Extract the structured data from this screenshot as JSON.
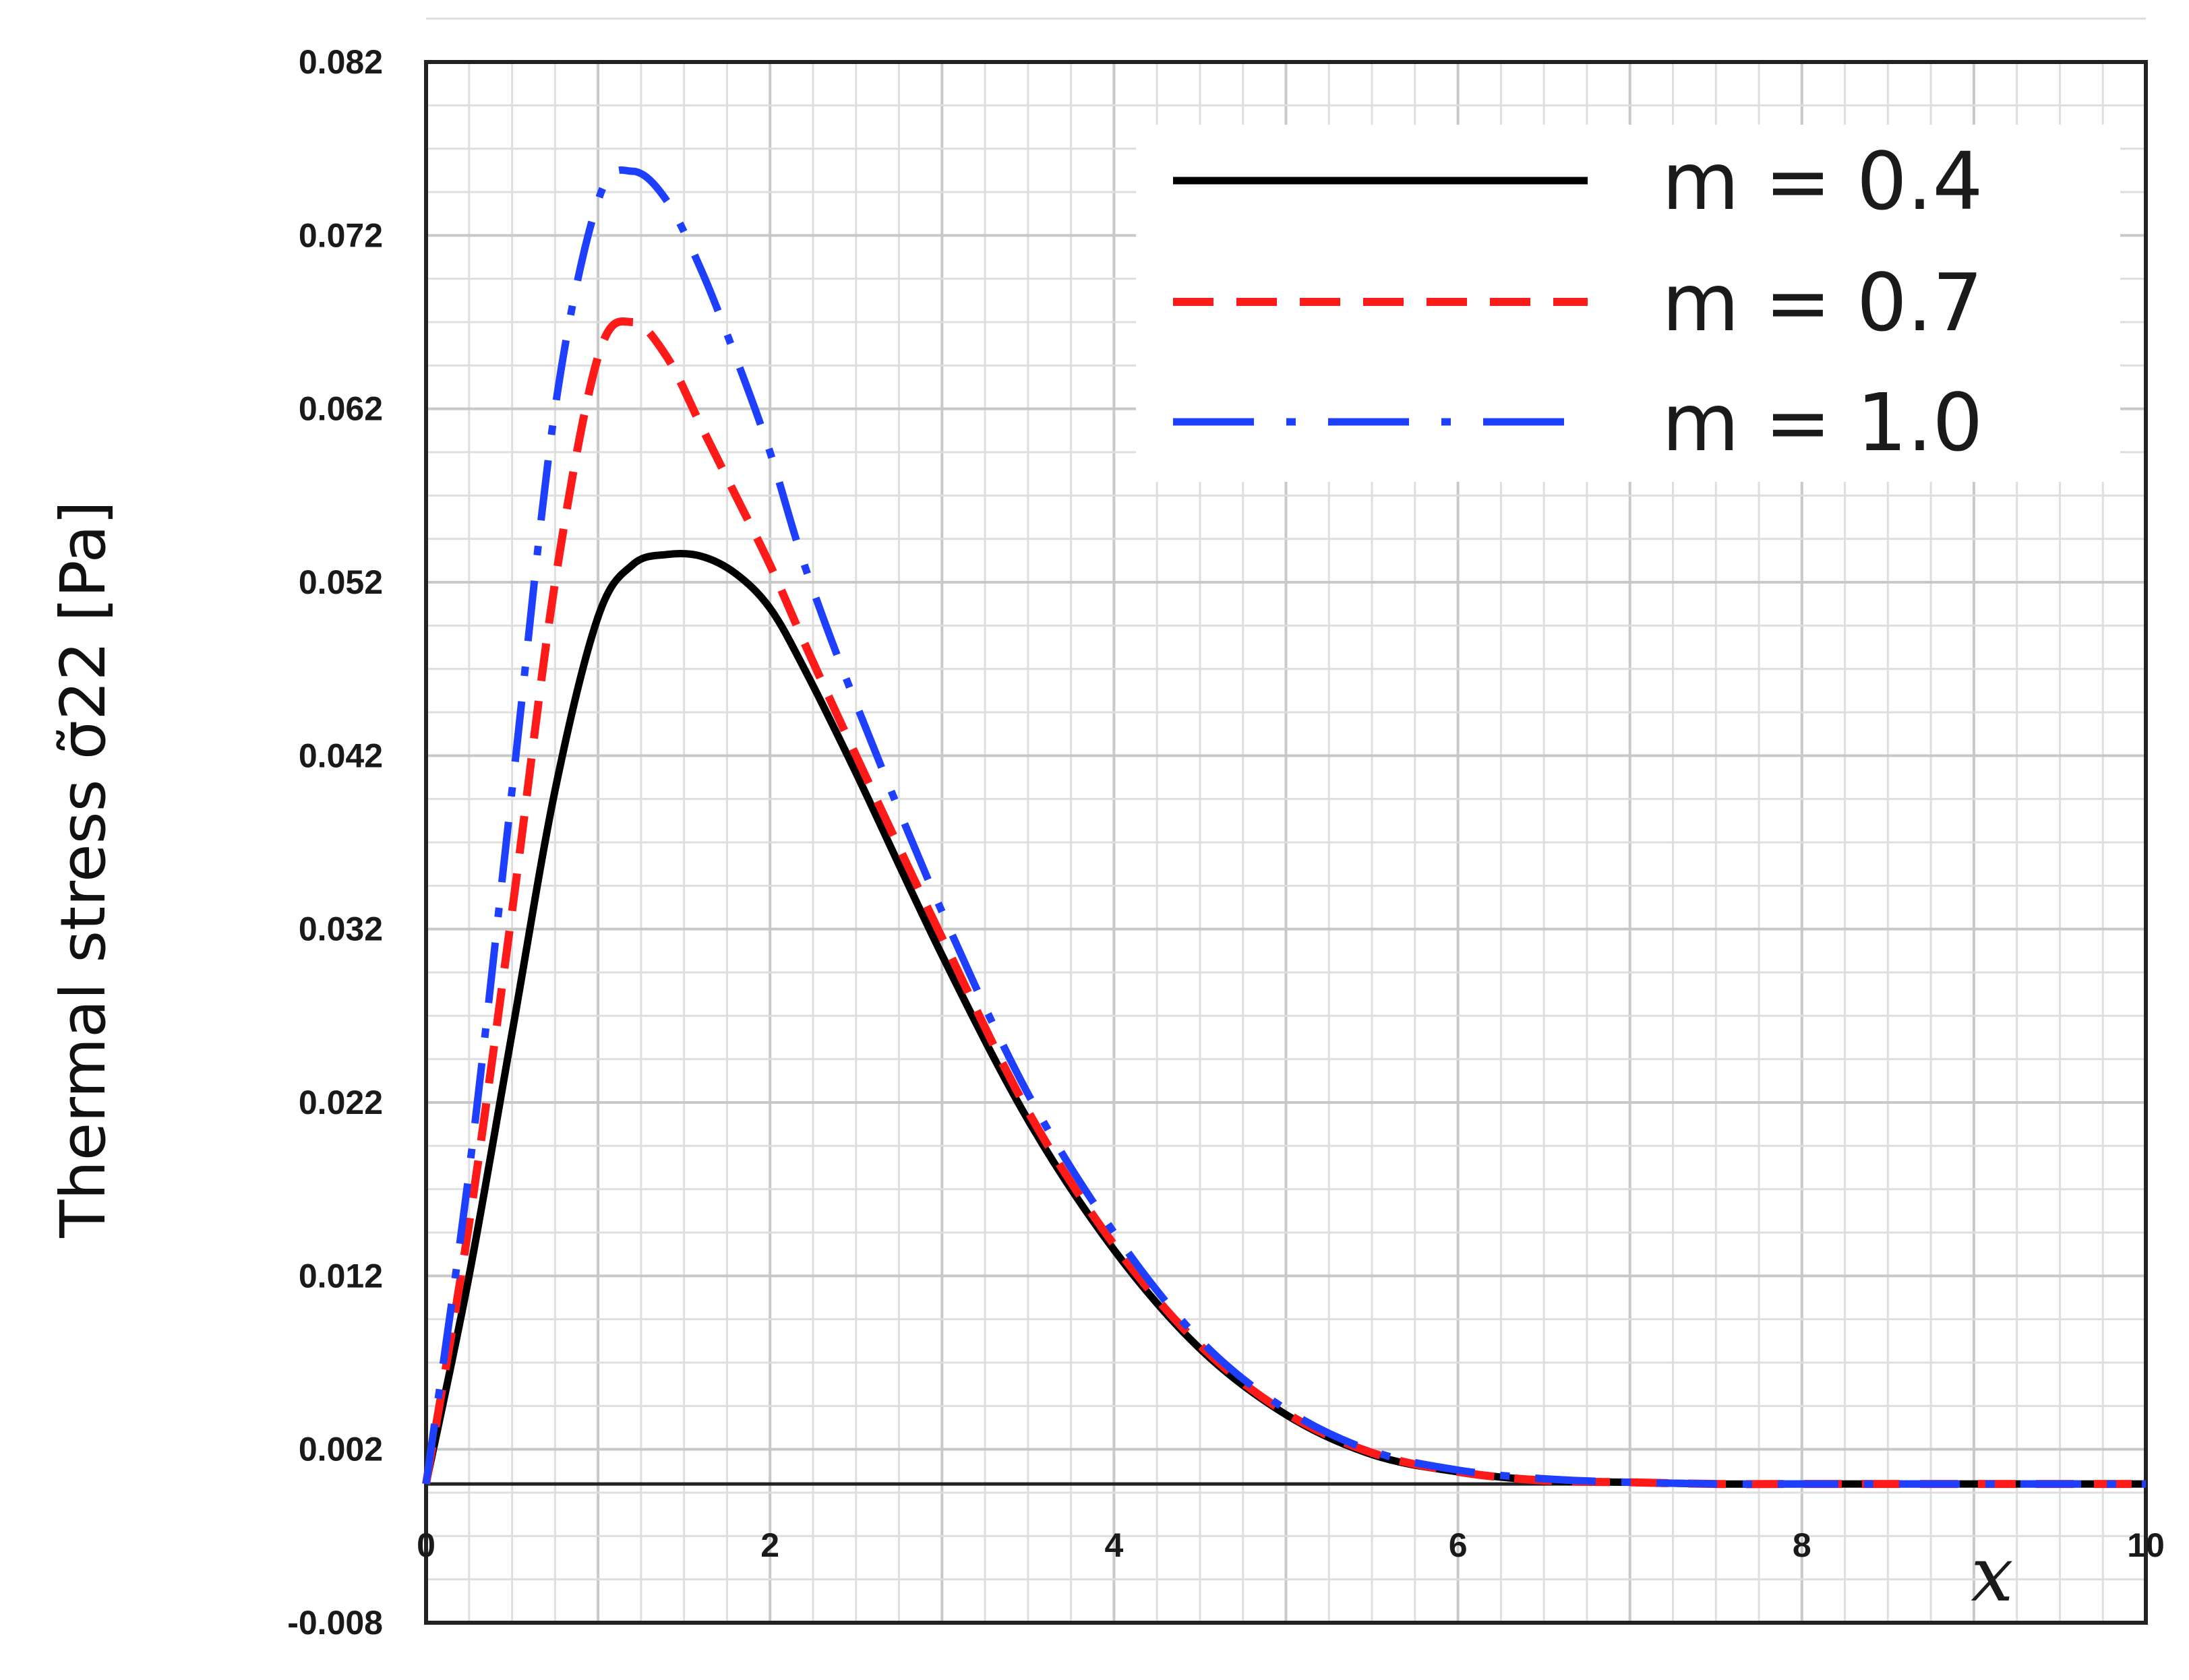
{
  "chart_data": {
    "type": "line",
    "title": "",
    "xlabel": "x",
    "ylabel": "Thermal stress σ̃22 [Pa]",
    "xlim": [
      0,
      10
    ],
    "ylim": [
      -0.008,
      0.082
    ],
    "x_ticks": [
      "0",
      "2",
      "4",
      "6",
      "8",
      "10"
    ],
    "y_ticks": [
      "0.082",
      "0.072",
      "0.062",
      "0.052",
      "0.042",
      "0.032",
      "0.022",
      "0.012",
      "0.002",
      "-0.008"
    ],
    "grid": true,
    "legend_position": "top-right",
    "series": [
      {
        "name": "m = 0.4",
        "color": "#000000",
        "dash": "solid",
        "x": [
          0,
          0.25,
          0.5,
          0.75,
          1.0,
          1.2,
          1.4,
          1.6,
          1.8,
          2.0,
          2.2,
          2.5,
          3.0,
          3.5,
          4.0,
          4.5,
          5.0,
          5.5,
          6.0,
          6.5,
          7.0,
          7.5,
          8.0,
          9.0,
          10.0
        ],
        "y": [
          0.0,
          0.012,
          0.026,
          0.04,
          0.05,
          0.053,
          0.0536,
          0.0535,
          0.0525,
          0.0505,
          0.047,
          0.041,
          0.0305,
          0.021,
          0.0135,
          0.0078,
          0.004,
          0.0017,
          0.0007,
          0.0002,
          0.0001,
          0.0,
          0.0,
          0.0,
          0.0
        ]
      },
      {
        "name": "m = 0.7",
        "color": "#ff1a1a",
        "dash": "dashed",
        "x": [
          0,
          0.25,
          0.5,
          0.75,
          1.0,
          1.2,
          1.4,
          1.6,
          1.8,
          2.0,
          2.2,
          2.5,
          3.0,
          3.5,
          4.0,
          4.5,
          5.0,
          5.5,
          6.0,
          6.5,
          7.0,
          7.5,
          8.0,
          9.0,
          10.0
        ],
        "y": [
          0.0,
          0.015,
          0.033,
          0.052,
          0.065,
          0.067,
          0.065,
          0.061,
          0.057,
          0.053,
          0.0485,
          0.042,
          0.0315,
          0.0215,
          0.0138,
          0.008,
          0.0041,
          0.0018,
          0.0007,
          0.0002,
          0.0001,
          0.0,
          0.0,
          0.0,
          0.0
        ]
      },
      {
        "name": "m = 1.0",
        "color": "#1f3fff",
        "dash": "long-dash-dot",
        "x": [
          0,
          0.25,
          0.5,
          0.75,
          1.0,
          1.2,
          1.4,
          1.6,
          1.8,
          2.0,
          2.2,
          2.5,
          3.0,
          3.5,
          4.0,
          4.5,
          5.0,
          5.5,
          6.0,
          6.5,
          7.0,
          7.5,
          8.0,
          9.0,
          10.0
        ],
        "y": [
          0.0,
          0.018,
          0.04,
          0.062,
          0.074,
          0.0757,
          0.074,
          0.07,
          0.065,
          0.0595,
          0.053,
          0.045,
          0.033,
          0.0225,
          0.0145,
          0.0083,
          0.0043,
          0.0019,
          0.0008,
          0.0003,
          0.0001,
          0.0,
          0.0,
          0.0,
          0.0
        ]
      }
    ]
  }
}
